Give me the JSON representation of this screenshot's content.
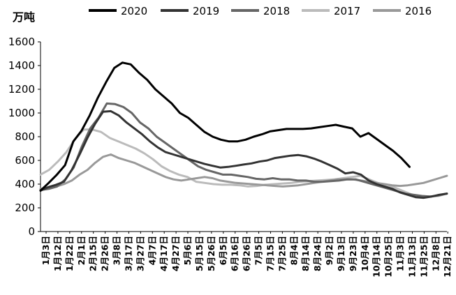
{
  "chart_data": {
    "type": "line",
    "title": "",
    "ylabel": "万吨",
    "xlabel": "",
    "ylim": [
      0,
      1600
    ],
    "yticks": [
      0,
      200,
      400,
      600,
      800,
      1000,
      1200,
      1400,
      1600
    ],
    "grid": false,
    "legend_position": "top",
    "x_labels": [
      "1月3日",
      "1月12日",
      "1月22日",
      "2月1日",
      "2月15日",
      "2月26日",
      "3月8日",
      "3月17日",
      "3月27日",
      "4月7日",
      "4月17日",
      "4月27日",
      "5月6日",
      "5月15日",
      "5月26日",
      "6月5日",
      "6月16日",
      "6月26日",
      "7月5日",
      "7月15日",
      "7月25日",
      "8月4日",
      "8月14日",
      "8月24日",
      "9月2日",
      "9月13日",
      "9月23日",
      "10月4日",
      "10月14日",
      "10月25日",
      "11月3日",
      "11月13日",
      "11月25日",
      "12月8日",
      "12月21日"
    ],
    "series": [
      {
        "name": "2020",
        "color": "#000000",
        "values": [
          345,
          410,
          480,
          560,
          760,
          850,
          980,
          1130,
          1260,
          1380,
          1425,
          1410,
          1340,
          1280,
          1200,
          1140,
          1080,
          1000,
          960,
          900,
          840,
          800,
          775,
          760,
          760,
          775,
          800,
          820,
          845,
          855,
          865,
          865,
          865,
          870,
          880,
          890,
          900,
          885,
          870,
          800,
          830,
          780,
          730,
          680,
          620,
          545
        ]
      },
      {
        "name": "2019",
        "color": "#333333",
        "values": [
          345,
          375,
          395,
          420,
          520,
          650,
          790,
          910,
          1010,
          1015,
          980,
          920,
          870,
          820,
          760,
          710,
          670,
          650,
          630,
          610,
          590,
          570,
          555,
          540,
          545,
          555,
          565,
          575,
          590,
          600,
          620,
          630,
          640,
          645,
          635,
          615,
          590,
          560,
          530,
          490,
          500,
          480,
          430,
          400,
          380,
          360,
          330,
          310,
          290,
          285,
          295,
          310,
          320
        ]
      },
      {
        "name": "2018",
        "color": "#666666",
        "values": [
          350,
          360,
          380,
          440,
          540,
          720,
          870,
          960,
          1080,
          1075,
          1050,
          1000,
          920,
          870,
          800,
          750,
          700,
          650,
          600,
          550,
          520,
          500,
          480,
          480,
          470,
          460,
          445,
          440,
          450,
          440,
          440,
          430,
          430,
          420,
          420,
          425,
          430,
          440,
          440,
          420,
          400,
          380,
          360,
          340,
          320,
          310,
          300,
          295,
          305,
          320
        ]
      },
      {
        "name": "2017",
        "color": "#bbbbbb",
        "values": [
          480,
          520,
          590,
          670,
          780,
          860,
          860,
          840,
          790,
          760,
          730,
          700,
          660,
          610,
          550,
          510,
          480,
          460,
          420,
          410,
          400,
          395,
          395,
          390,
          380,
          385,
          395,
          400,
          405,
          410,
          420,
          425,
          430,
          435,
          440,
          450,
          460,
          470,
          440,
          410,
          380,
          370,
          340,
          310,
          300,
          295,
          300,
          320
        ]
      },
      {
        "name": "2016",
        "color": "#999999",
        "values": [
          360,
          370,
          380,
          400,
          430,
          480,
          520,
          580,
          630,
          650,
          620,
          600,
          580,
          550,
          520,
          490,
          460,
          440,
          430,
          440,
          450,
          460,
          450,
          430,
          420,
          410,
          405,
          400,
          395,
          390,
          385,
          380,
          385,
          390,
          400,
          410,
          420,
          430,
          440,
          440,
          440,
          430,
          420,
          410,
          400,
          390,
          385,
          390,
          400,
          410,
          430,
          450,
          470
        ]
      }
    ]
  }
}
